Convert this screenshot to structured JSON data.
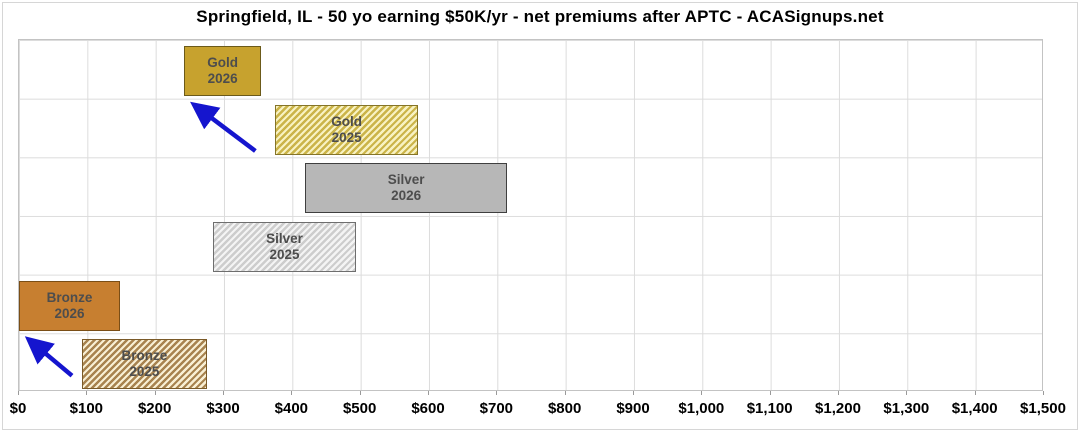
{
  "title": "Springfield, IL - 50 yo earning $50K/yr - net premiums after APTC - ACASignups.net",
  "chart_data": {
    "type": "bar",
    "orientation": "horizontal-range",
    "title": "Springfield, IL - 50 yo earning $50K/yr - net premiums after APTC - ACASignups.net",
    "xlim": [
      0,
      1500
    ],
    "grid": true,
    "x_ticks": [
      {
        "value": 0,
        "label": "$0"
      },
      {
        "value": 100,
        "label": "$100"
      },
      {
        "value": 200,
        "label": "$200"
      },
      {
        "value": 300,
        "label": "$300"
      },
      {
        "value": 400,
        "label": "$400"
      },
      {
        "value": 500,
        "label": "$500"
      },
      {
        "value": 600,
        "label": "$600"
      },
      {
        "value": 700,
        "label": "$700"
      },
      {
        "value": 800,
        "label": "$800"
      },
      {
        "value": 900,
        "label": "$900"
      },
      {
        "value": 1000,
        "label": "$1,000"
      },
      {
        "value": 1100,
        "label": "$1,100"
      },
      {
        "value": 1200,
        "label": "$1,200"
      },
      {
        "value": 1300,
        "label": "$1,300"
      },
      {
        "value": 1400,
        "label": "$1,400"
      },
      {
        "value": 1500,
        "label": "$1,500"
      }
    ],
    "bars": [
      {
        "metal": "Gold",
        "year": "2026",
        "start": 242,
        "end": 354,
        "style": "gold-solid"
      },
      {
        "metal": "Gold",
        "year": "2025",
        "start": 375,
        "end": 584,
        "style": "gold-hatch"
      },
      {
        "metal": "Silver",
        "year": "2026",
        "start": 419,
        "end": 714,
        "style": "silver-solid"
      },
      {
        "metal": "Silver",
        "year": "2025",
        "start": 284,
        "end": 493,
        "style": "silver-hatch"
      },
      {
        "metal": "Bronze",
        "year": "2026",
        "start": 0,
        "end": 148,
        "style": "bronze-solid"
      },
      {
        "metal": "Bronze",
        "year": "2025",
        "start": 92,
        "end": 275,
        "style": "bronze-hatch"
      }
    ],
    "annotations": [
      {
        "type": "arrow",
        "from": "Gold 2025",
        "to": "Gold 2026",
        "direction": "up-left"
      },
      {
        "type": "arrow",
        "from": "Bronze 2025",
        "to": "Bronze 2026",
        "direction": "up-left"
      }
    ],
    "colors": {
      "arrow": "#1515ce",
      "gold_fill": "#c7a22e",
      "gold_border": "#6b5a1a",
      "gold_hatch_bg": "#f8f2c2",
      "gold_hatch_stripe": "#cbb449",
      "gold_hatch_border": "#857428",
      "silver_fill": "#b7b7b7",
      "silver_border": "#3f3f3f",
      "silver_hatch_bg": "#f4f4f4",
      "silver_hatch_stripe": "#cdcdcd",
      "silver_hatch_border": "#6e6e6e",
      "bronze_fill": "#c77f30",
      "bronze_border": "#7a4e16",
      "bronze_hatch_bg": "#f8efd4",
      "bronze_hatch_stripe": "#a8834f",
      "bronze_hatch_border": "#7a5a28",
      "gridline": "#dcdcdc",
      "label_text": "#4d4d4d"
    }
  }
}
